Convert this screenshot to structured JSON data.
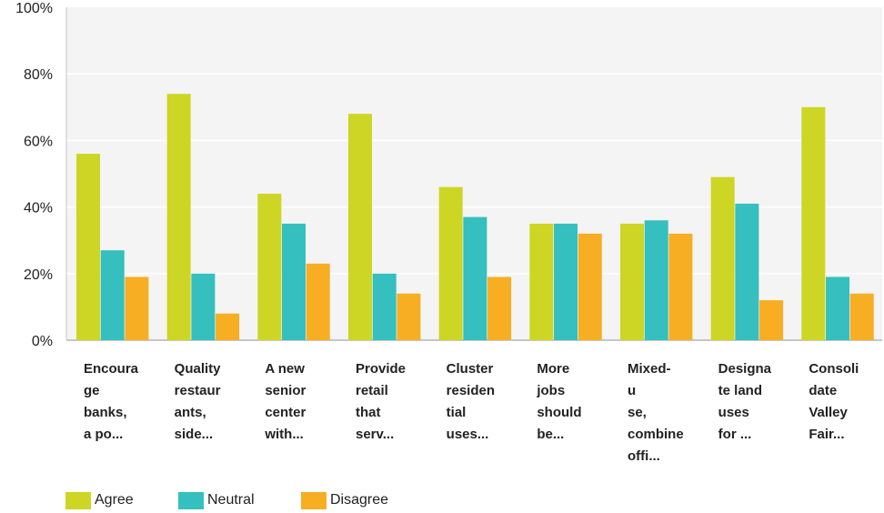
{
  "chart_data": {
    "type": "bar",
    "categories": [
      "Encourage banks, a po...",
      "Quality restaurants, side...",
      "A new senior center with...",
      "Provide retail that serv...",
      "Cluster residential uses...",
      "More jobs should be...",
      "Mixed-use, combine offi...",
      "Designate land uses for ...",
      "Consolidate Valley Fair..."
    ],
    "category_lines": [
      [
        "Encoura",
        "ge",
        "banks,",
        "a po..."
      ],
      [
        "Quality",
        "restaur",
        "ants,",
        "side..."
      ],
      [
        "A new",
        "senior",
        "center",
        "with..."
      ],
      [
        "Provide",
        "retail",
        "that",
        "serv..."
      ],
      [
        "Cluster",
        "residen",
        "tial",
        "uses..."
      ],
      [
        "More",
        "jobs",
        "should",
        "be..."
      ],
      [
        "Mixed-",
        "u",
        "se,",
        "combine",
        "offi..."
      ],
      [
        "Designa",
        "te land",
        "uses",
        "for ..."
      ],
      [
        "Consoli",
        "date",
        "Valley",
        "Fair..."
      ]
    ],
    "series": [
      {
        "name": "Agree",
        "color": "#cdd624",
        "values": [
          56,
          74,
          44,
          68,
          46,
          35,
          35,
          49,
          70
        ]
      },
      {
        "name": "Neutral",
        "color": "#35bfbf",
        "values": [
          27,
          20,
          35,
          20,
          37,
          35,
          36,
          41,
          19
        ]
      },
      {
        "name": "Disagree",
        "color": "#f7ae22",
        "values": [
          19,
          8,
          23,
          14,
          19,
          32,
          32,
          12,
          14
        ]
      }
    ],
    "yticks": [
      "0%",
      "20%",
      "40%",
      "60%",
      "80%",
      "100%"
    ],
    "ylim": [
      0,
      100
    ],
    "grid": true,
    "legend_position": "bottom-left",
    "title": "",
    "xlabel": "",
    "ylabel": ""
  }
}
